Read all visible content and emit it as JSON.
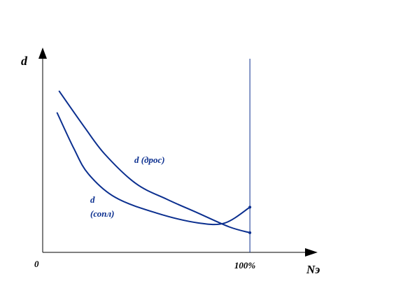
{
  "chart_data": {
    "type": "line",
    "title": "",
    "ylabel": "d",
    "xlabel": "Nэ",
    "origin_label": "0",
    "x_tick_label": "100%",
    "xlim": [
      0,
      130
    ],
    "ylim": [
      0,
      100
    ],
    "marker_x": 100,
    "grid": false,
    "series": [
      {
        "name": "d (дрос)",
        "x": [
          8,
          20,
          30,
          45,
          60,
          75,
          90,
          100
        ],
        "y": [
          82,
          64,
          50,
          35,
          27,
          20,
          13,
          10
        ]
      },
      {
        "name": "d (сопл)",
        "x": [
          7,
          15,
          22,
          35,
          55,
          75,
          88,
          100
        ],
        "y": [
          71,
          53,
          40,
          28,
          20,
          15,
          15,
          23
        ]
      }
    ],
    "series_label_lines": [
      [
        "d (дрос)"
      ],
      [
        "d",
        "(сопл)"
      ]
    ]
  },
  "colors": {
    "axis": "#000000",
    "series": "#0b2f8f"
  }
}
